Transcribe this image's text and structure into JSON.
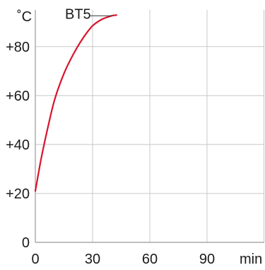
{
  "chart_data": {
    "type": "line",
    "unit_label": "˚C",
    "x_unit_label": "min",
    "x_ticks": [
      0,
      30,
      60,
      90
    ],
    "y_ticks": [
      0,
      20,
      40,
      60,
      80
    ],
    "x_tick_labels": [
      "0",
      "30",
      "60",
      "90"
    ],
    "y_tick_labels": [
      "0",
      "+20",
      "+40",
      "+60",
      "+80"
    ],
    "xlim": [
      0,
      120
    ],
    "ylim": [
      0,
      95
    ],
    "grid": true,
    "series": [
      {
        "name": "BT5",
        "color": "#d9142b",
        "x": [
          0,
          3,
          6,
          10,
          15,
          20,
          25,
          30,
          35,
          40,
          42.5
        ],
        "y": [
          21,
          34,
          45,
          58,
          69,
          77,
          83.5,
          88.5,
          91.2,
          92.6,
          92.9
        ]
      }
    ]
  }
}
